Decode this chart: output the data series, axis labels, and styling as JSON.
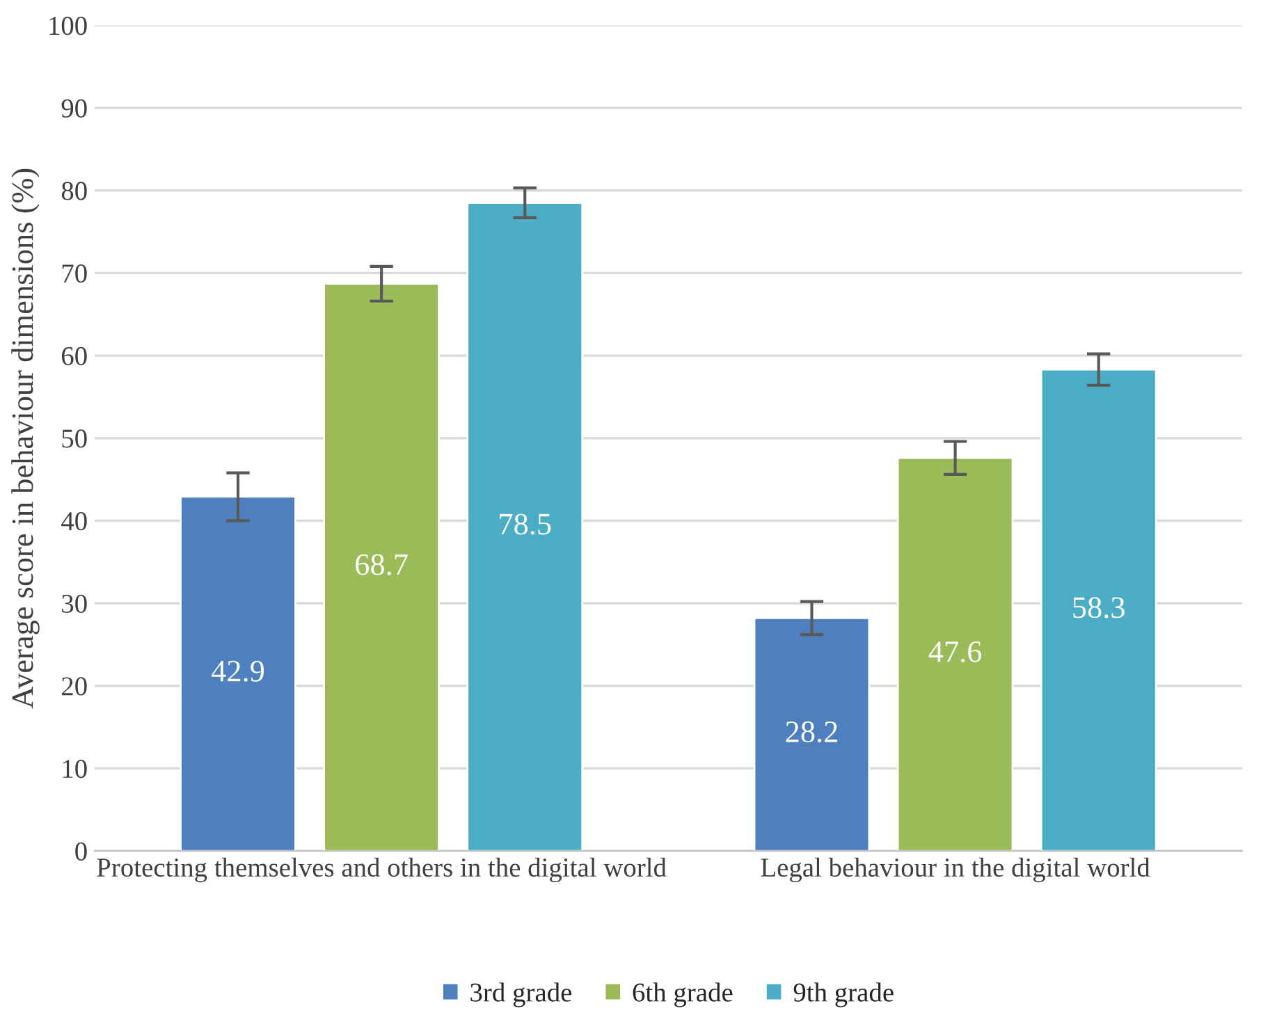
{
  "chart_data": {
    "type": "bar",
    "ylabel": "Average score in behaviour dimensions (%)",
    "categories": [
      "Protecting themselves and others in the digital world",
      "Legal behaviour in the digital world"
    ],
    "series": [
      {
        "name": "3rd grade",
        "color": "#4e7fbf",
        "values": [
          42.9,
          28.2
        ],
        "errors": [
          2.9,
          2.0
        ]
      },
      {
        "name": "6th grade",
        "color": "#9bbb59",
        "values": [
          68.7,
          47.6
        ],
        "errors": [
          2.1,
          2.0
        ]
      },
      {
        "name": "9th grade",
        "color": "#4bacc6",
        "values": [
          78.5,
          58.3
        ],
        "errors": [
          1.8,
          1.9
        ]
      }
    ],
    "ylim": [
      0,
      100
    ],
    "yticks": [
      0,
      10,
      20,
      30,
      40,
      50,
      60,
      70,
      80,
      90,
      100
    ],
    "grid": "y",
    "legend": "bottom",
    "data_labels": true
  }
}
